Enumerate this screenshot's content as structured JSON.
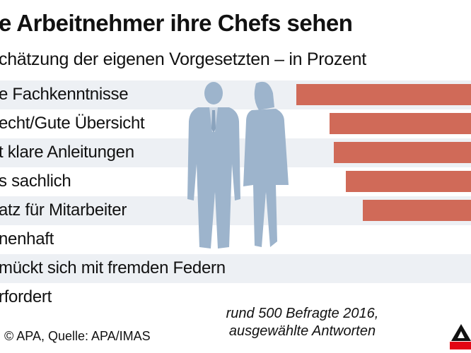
{
  "title": "e Arbeitnehmer ihre Chefs sehen",
  "subtitle": "chätzung der eigenen Vorgesetzten – in Prozent",
  "chart_data": {
    "type": "bar",
    "orientation": "horizontal",
    "categories": [
      "e Fachkenntnisse",
      "echt/Gute Übersicht",
      "t klare Anleitungen",
      "s sachlich",
      "atz für Mitarbeiter",
      "nenhaft",
      "mückt sich mit fremden Federn",
      "rfordert"
    ],
    "values": null,
    "bar_color": "#d06a58",
    "row_colors": [
      "#edf0f4",
      "#ffffff"
    ]
  },
  "source": ": © APA, Quelle: APA/IMAS",
  "note": {
    "line1": "rund 500 Befragte 2016,",
    "line2": "ausgewählte Antworten"
  },
  "figure_color": "#9db4cc",
  "logo_colors": [
    "#111111",
    "#e30613"
  ]
}
